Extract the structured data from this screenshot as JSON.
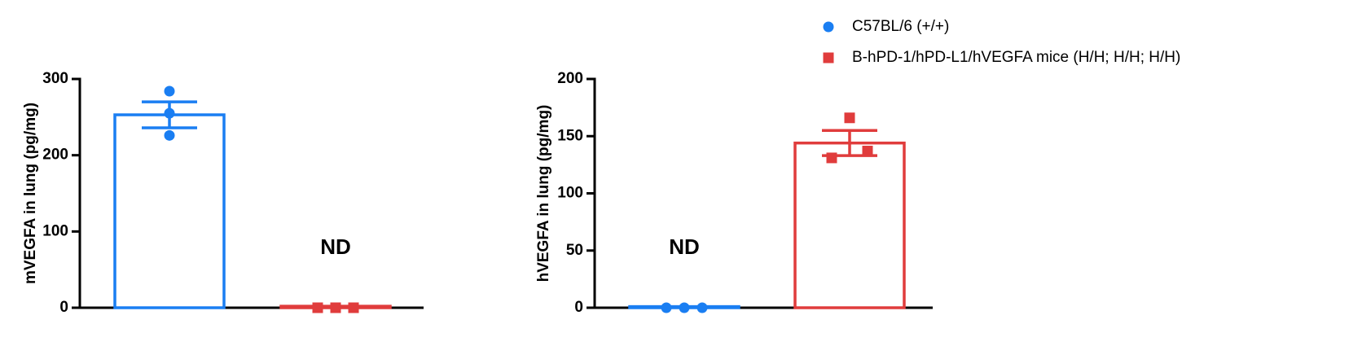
{
  "legend": [
    {
      "name": "C57BL/6 (+/+)",
      "color": "#1a7ef2",
      "marker": "circle"
    },
    {
      "name": "B-hPD-1/hPD-L1/hVEGFA mice  (H/H; H/H; H/H)",
      "color": "#e03c3c",
      "marker": "square"
    }
  ],
  "chart_data": [
    {
      "type": "bar",
      "ylabel": "mVEGFA in lung (pg/mg)",
      "ylim": [
        0,
        300
      ],
      "yticks": [
        0,
        100,
        200,
        300
      ],
      "annotation": "ND",
      "series": [
        {
          "name": "C57BL/6 (+/+)",
          "color": "#1a7ef2",
          "marker": "circle",
          "value": 253,
          "error": 17,
          "points": [
            284,
            255,
            226
          ]
        },
        {
          "name": "B-hPD-1/hPD-L1/hVEGFA mice  (H/H; H/H; H/H)",
          "color": "#e03c3c",
          "marker": "square",
          "value": 2,
          "points": [
            0,
            0,
            0
          ]
        }
      ]
    },
    {
      "type": "bar",
      "ylabel": "hVEGFA in lung (pg/mg)",
      "ylim": [
        0,
        200
      ],
      "yticks": [
        0,
        50,
        100,
        150,
        200
      ],
      "annotation": "ND",
      "series": [
        {
          "name": "C57BL/6 (+/+)",
          "color": "#1a7ef2",
          "marker": "circle",
          "value": 1,
          "points": [
            0,
            0,
            0
          ]
        },
        {
          "name": "B-hPD-1/hPD-L1/hVEGFA mice  (H/H; H/H; H/H)",
          "color": "#e03c3c",
          "marker": "square",
          "value": 144,
          "error": 11,
          "points": [
            166,
            131,
            137
          ]
        }
      ]
    }
  ]
}
